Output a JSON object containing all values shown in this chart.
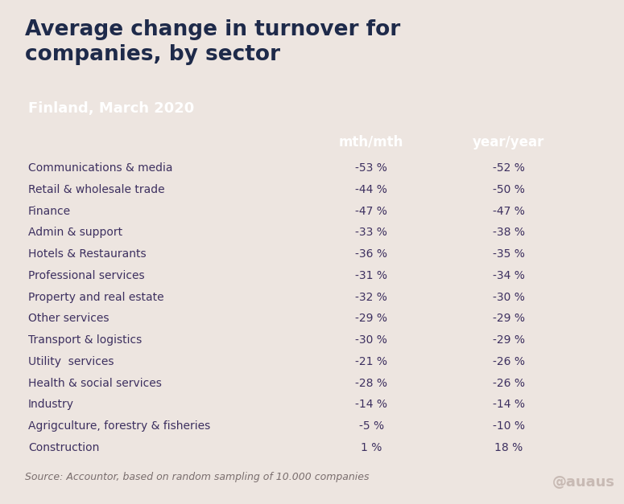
{
  "title": "Average change in turnover for\ncompanies, by sector",
  "subtitle": "Finland, March 2020",
  "col1_header": "mth/mth",
  "col2_header": "year/year",
  "source": "Source: Accountor, based on random sampling of 10.000 companies",
  "sectors": [
    "Communications & media",
    "Retail & wholesale trade",
    "Finance",
    "Admin & support",
    "Hotels & Restaurants",
    "Professional services",
    "Property and real estate",
    "Other services",
    "Transport & logistics",
    "Utility  services",
    "Health & social services",
    "Industry",
    "Agrigculture, forestry & fisheries",
    "Construction"
  ],
  "mth_mth": [
    "-53 %",
    "-44 %",
    "-47 %",
    "-33 %",
    "-36 %",
    "-31 %",
    "-32 %",
    "-29 %",
    "-30 %",
    "-21 %",
    "-28 %",
    "-14 %",
    "-5 %",
    "1 %"
  ],
  "year_year": [
    "-52 %",
    "-50 %",
    "-47 %",
    "-38 %",
    "-35 %",
    "-34 %",
    "-30 %",
    "-29 %",
    "-29 %",
    "-26 %",
    "-26 %",
    "-14 %",
    "-10 %",
    "18 %"
  ],
  "bg_top": "#ede5e0",
  "bg_table": "#d9c8c2",
  "bg_footer": "#ede5e0",
  "title_color": "#1e2a4a",
  "subtitle_color": "#ffffff",
  "col_header_color": "#ffffff",
  "row_color": "#3d3060",
  "source_color": "#7a6e6e",
  "logo_color": "#c4b0aa",
  "fig_width": 7.75,
  "fig_height": 6.27,
  "dpi": 100
}
